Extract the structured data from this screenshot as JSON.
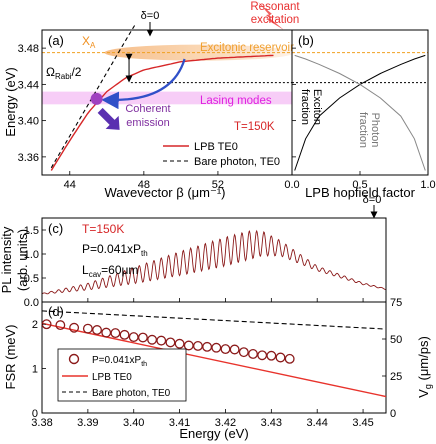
{
  "chart_data": [
    {
      "id": "a",
      "type": "line",
      "panel_label": "(a)",
      "xlabel": "Wavevector β (μm⁻¹)",
      "ylabel": "Energy (eV)",
      "xlim": [
        42.5,
        56
      ],
      "ylim": [
        3.34,
        3.5
      ],
      "xticks": [
        44,
        48,
        52
      ],
      "yticks": [
        3.36,
        3.4,
        3.44,
        3.48
      ],
      "legend": {
        "placement": "bottom-right",
        "entries": [
          "LPB TE0",
          "Bare photon, TE0"
        ]
      },
      "series": [
        {
          "name": "LPB TE0",
          "color": "#d62728",
          "style": "solid",
          "x": [
            43.0,
            44.0,
            45.0,
            46.0,
            47.0,
            48.0,
            50.0,
            52.0,
            55.0
          ],
          "y": [
            3.345,
            3.378,
            3.409,
            3.432,
            3.447,
            3.456,
            3.465,
            3.469,
            3.472
          ]
        },
        {
          "name": "Bare photon, TE0",
          "color": "#000000",
          "style": "dashed",
          "x": [
            43.0,
            44.0,
            45.0,
            46.0,
            47.0,
            47.5
          ],
          "y": [
            3.348,
            3.383,
            3.418,
            3.453,
            3.488,
            3.505
          ]
        }
      ],
      "annotations": {
        "detuning": "δ=0",
        "exciton_label": "X",
        "exciton_sub": "A",
        "exciton_energy": 3.475,
        "reservoir": "Excitonic reservoir",
        "rabi_main": "Ω",
        "rabi_sub": "Rabi",
        "rabi_tail": "/2",
        "lasing_modes": "Lasing modes",
        "temperature": "T=150K",
        "coherent": "Coherent emission",
        "resonant": "Resonant excitation"
      }
    },
    {
      "id": "b",
      "type": "line",
      "panel_label": "(b)",
      "xlabel": "LPB hopfield factor",
      "xlim": [
        0,
        1
      ],
      "xticks": [
        0.0,
        0.5,
        1.0
      ],
      "series": [
        {
          "name": "Exciton fraction",
          "color": "#000000",
          "x": [
            0.02,
            0.1,
            0.2,
            0.35,
            0.5,
            0.65,
            0.8,
            0.9,
            0.98
          ],
          "y": [
            3.345,
            3.38,
            3.405,
            3.425,
            3.44,
            3.452,
            3.462,
            3.468,
            3.472
          ]
        },
        {
          "name": "Photon fraction",
          "color": "#888888",
          "x": [
            0.98,
            0.9,
            0.8,
            0.65,
            0.5,
            0.35,
            0.2,
            0.1,
            0.02
          ],
          "y": [
            3.345,
            3.38,
            3.405,
            3.425,
            3.44,
            3.452,
            3.462,
            3.468,
            3.472
          ]
        }
      ],
      "labels": {
        "exciton": "Exciton fraction",
        "photon": "Photon fraction"
      }
    },
    {
      "id": "c",
      "type": "line",
      "panel_label": "(c)",
      "ylabel": "PL intensity (arb. units)",
      "xlim": [
        3.38,
        3.455
      ],
      "ylim": [
        0,
        1.75
      ],
      "yticks": [
        0.0,
        0.5,
        1.0,
        1.5
      ],
      "annotations": {
        "temperature": "T=150K",
        "power_main": "P=0.041xP",
        "power_sub": "th",
        "cavity_main": "L",
        "cavity_sub": "cav",
        "cavity_tail": "=60μm",
        "detuning": "δ=0"
      },
      "envelope": {
        "energy": [
          3.38,
          3.39,
          3.4,
          3.41,
          3.42,
          3.425,
          3.428,
          3.432,
          3.44,
          3.45,
          3.455
        ],
        "mean": [
          0.17,
          0.32,
          0.55,
          0.8,
          1.05,
          1.18,
          1.22,
          1.12,
          0.7,
          0.38,
          0.27
        ],
        "ripple_amplitude": [
          0.01,
          0.07,
          0.17,
          0.25,
          0.3,
          0.3,
          0.26,
          0.16,
          0.05,
          0.02,
          0.01
        ],
        "mode_spacing_meV": 1.6
      }
    },
    {
      "id": "d",
      "type": "scatter",
      "panel_label": "(d)",
      "xlabel": "Energy (eV)",
      "ylabel": "FSR (meV)",
      "ylabel_right_main": "V",
      "ylabel_right_sub": "g",
      "ylabel_right_tail": " (μm/ps)",
      "xlim": [
        3.38,
        3.455
      ],
      "ylim": [
        0,
        2.5
      ],
      "ylim_right": [
        0,
        75
      ],
      "xticks": [
        3.38,
        3.39,
        3.4,
        3.41,
        3.42,
        3.43,
        3.44,
        3.45
      ],
      "yticks": [
        0,
        1,
        2
      ],
      "yticks_right": [
        0,
        25,
        50,
        75
      ],
      "legend": {
        "placement": "bottom-left",
        "entries": [
          "P=0.041xP",
          "LPB TE0",
          "Bare photon, TE0"
        ],
        "entry_sub": "th"
      },
      "series": [
        {
          "name": "P=0.041xPth",
          "color": "#8b1a1a",
          "marker": "circle",
          "x": [
            3.381,
            3.384,
            3.387,
            3.39,
            3.392,
            3.394,
            3.396,
            3.398,
            3.4,
            3.402,
            3.404,
            3.406,
            3.408,
            3.41,
            3.412,
            3.414,
            3.416,
            3.418,
            3.42,
            3.422,
            3.424,
            3.426,
            3.428,
            3.43,
            3.432,
            3.434
          ],
          "y": [
            2.0,
            1.98,
            1.92,
            1.9,
            1.87,
            1.81,
            1.8,
            1.76,
            1.71,
            1.7,
            1.65,
            1.63,
            1.59,
            1.56,
            1.52,
            1.51,
            1.49,
            1.47,
            1.44,
            1.43,
            1.37,
            1.33,
            1.3,
            1.29,
            1.25,
            1.22
          ]
        },
        {
          "name": "LPB TE0",
          "color": "#e8332c",
          "style": "solid",
          "x": [
            3.38,
            3.455
          ],
          "y": [
            2.02,
            0.37
          ]
        },
        {
          "name": "Bare photon, TE0",
          "color": "#000000",
          "style": "dashed",
          "x": [
            3.38,
            3.455
          ],
          "y": [
            2.3,
            1.89
          ]
        }
      ]
    }
  ]
}
